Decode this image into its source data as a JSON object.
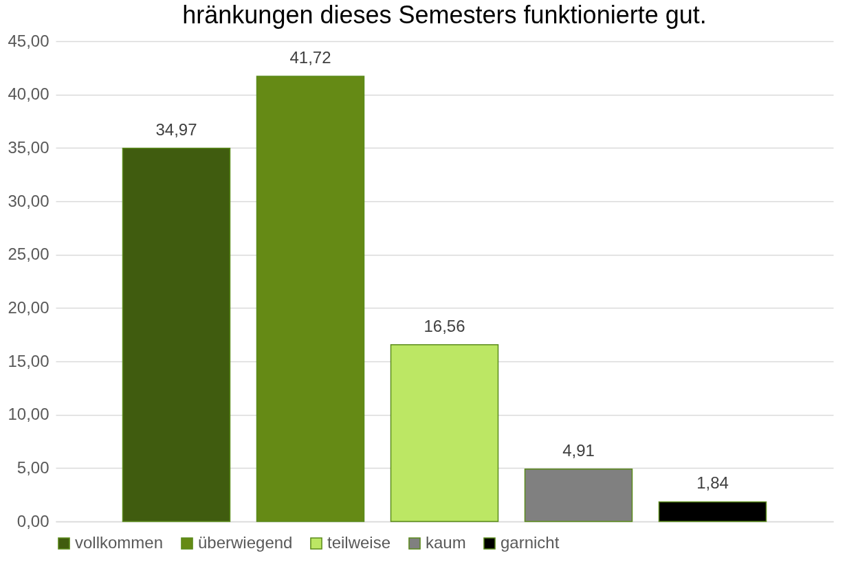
{
  "chart_data": {
    "type": "bar",
    "title": "hränkungen dieses Semesters funktionierte gut.",
    "categories": [
      null,
      null,
      null,
      null,
      null
    ],
    "series": [
      {
        "name": "vollkommen",
        "color": "#405c0f",
        "values": [
          34.97,
          null,
          null,
          null,
          null
        ]
      },
      {
        "name": "überwiegend",
        "color": "#658a15",
        "values": [
          null,
          41.72,
          null,
          null,
          null
        ]
      },
      {
        "name": "teilweise",
        "color": "#bce764",
        "values": [
          null,
          null,
          16.56,
          null,
          null
        ]
      },
      {
        "name": "kaum",
        "color": "#808080",
        "values": [
          null,
          null,
          null,
          4.91,
          null
        ]
      },
      {
        "name": "garnicht",
        "color": "#000000",
        "values": [
          null,
          null,
          null,
          null,
          1.84
        ]
      }
    ],
    "value_labels": [
      "34,97",
      "41,72",
      "16,56",
      "4,91",
      "1,84"
    ],
    "ylim": [
      0,
      45
    ],
    "yticks": [
      {
        "value": 0,
        "label": "0,00"
      },
      {
        "value": 5,
        "label": "5,00"
      },
      {
        "value": 10,
        "label": "10,00"
      },
      {
        "value": 15,
        "label": "15,00"
      },
      {
        "value": 20,
        "label": "20,00"
      },
      {
        "value": 25,
        "label": "25,00"
      },
      {
        "value": 30,
        "label": "30,00"
      },
      {
        "value": 35,
        "label": "35,00"
      },
      {
        "value": 40,
        "label": "40,00"
      },
      {
        "value": 45,
        "label": "45,00"
      }
    ],
    "grid": "y",
    "legend": "bottom"
  }
}
